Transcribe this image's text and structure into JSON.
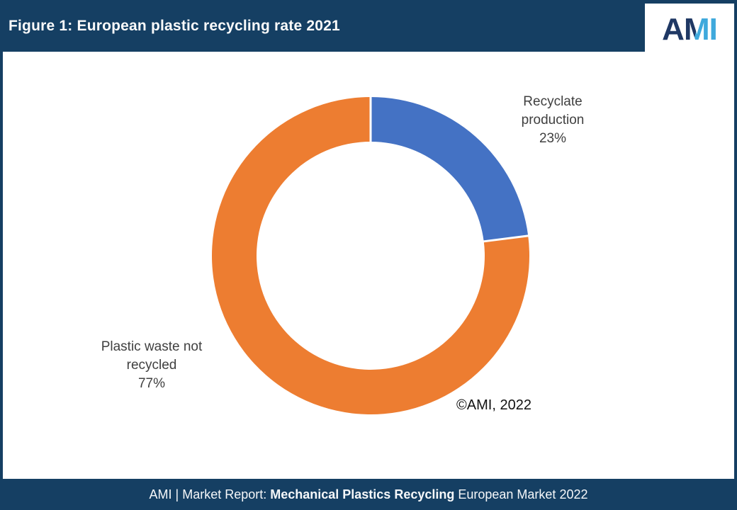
{
  "header": {
    "title": "Figure 1: European plastic recycling rate 2021"
  },
  "logo": {
    "name": "AMI",
    "letter_a": "A",
    "letter_m": "M",
    "letter_i": "I"
  },
  "chart_data": {
    "type": "pie",
    "subtype": "donut",
    "title": "European plastic recycling rate 2021",
    "units": "%",
    "direction": "clockwise",
    "start_angle_deg": 0,
    "inner_radius_ratio": 0.72,
    "gap_color": "#FFFFFF",
    "legend": "none",
    "segments": [
      {
        "label": "Recyclate production",
        "value": 23,
        "color": "#4472C4",
        "data_label": "Recyclate\nproduction\n23%"
      },
      {
        "label": "Plastic waste not recycled",
        "value": 77,
        "color": "#ED7D31",
        "data_label": "Plastic waste not\nrecycled\n77%"
      }
    ],
    "annotation": "©AMI, 2022"
  },
  "annotation": {
    "copyright": "©AMI, 2022"
  },
  "footer": {
    "prefix": "AMI | Market Report: ",
    "bold": "Mechanical Plastics Recycling",
    "suffix": " European Market 2022"
  },
  "colors": {
    "header_navy": "#153F63",
    "chart_blue": "#4472C4",
    "chart_orange": "#ED7D31",
    "label_gray": "#404040",
    "logo_navy": "#1F3864",
    "logo_blue": "#3FA9DC"
  }
}
